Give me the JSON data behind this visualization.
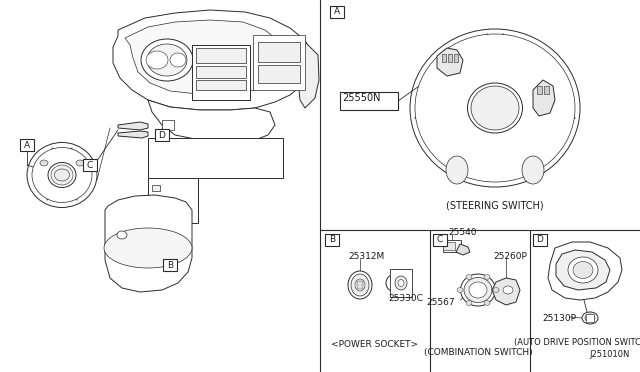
{
  "bg_color": "#ffffff",
  "line_color": "#2a2a2a",
  "text_color": "#1a1a1a",
  "fig_width": 6.4,
  "fig_height": 3.72,
  "dpi": 100,
  "part_25550N": "25550N",
  "part_25312M": "25312M",
  "part_25330C": "25330C",
  "part_25540": "25540",
  "part_25260P": "25260P",
  "part_25567": "25567",
  "part_25130P": "25130P",
  "caption_steering": "(STEERING SWITCH)",
  "caption_power": "<POWER SOCKET>",
  "caption_combo": "(COMBINATION SWITCH)",
  "caption_auto": "(AUTO DRIVE POSITION SWITCH)",
  "caption_code": "J251010N",
  "lw_main": 0.7,
  "lw_thick": 1.0,
  "lw_thin": 0.5
}
